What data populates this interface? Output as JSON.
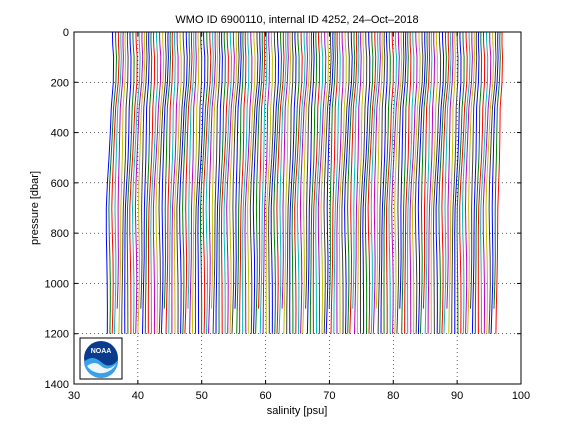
{
  "chart_data": {
    "type": "line",
    "title": "WMO ID 6900110, internal ID 4252, 24–Oct–2018",
    "xlabel": "salinity [psu]",
    "ylabel": "pressure [dbar]",
    "xlim": [
      30,
      100
    ],
    "ylim": [
      0,
      1400
    ],
    "y_reversed": true,
    "grid": true,
    "grid_style": "dotted",
    "x_ticks": [
      30,
      40,
      50,
      60,
      70,
      80,
      90,
      100
    ],
    "y_ticks": [
      0,
      200,
      400,
      600,
      800,
      1000,
      1200,
      1400
    ],
    "x_tick_labels": [
      "30",
      "40",
      "50",
      "60",
      "70",
      "80",
      "90",
      "100"
    ],
    "y_tick_labels": [
      "0",
      "200",
      "400",
      "600",
      "800",
      "1000",
      "1200",
      "1400"
    ],
    "profile_colors": [
      "#0000ff",
      "#008000",
      "#ff0000",
      "#00bfbf",
      "#bf00bf",
      "#bfbf00",
      "#404040"
    ],
    "profile_series": {
      "description": "one offset salinity profile per cycle, each profile shifted to the right of the previous one",
      "count": 150,
      "first_surface_salinity": 36.0,
      "last_surface_salinity": 97.5,
      "salinity_offset_per_profile": 0.41,
      "deep_shift": -0.9,
      "max_pressure": 1200,
      "pressure_levels": [
        0,
        20,
        50,
        100,
        200,
        300,
        400,
        500,
        600,
        700,
        800,
        900,
        1000,
        1100,
        1200
      ]
    }
  },
  "logo": {
    "name": "noaa-logo",
    "text": "NOAA"
  }
}
